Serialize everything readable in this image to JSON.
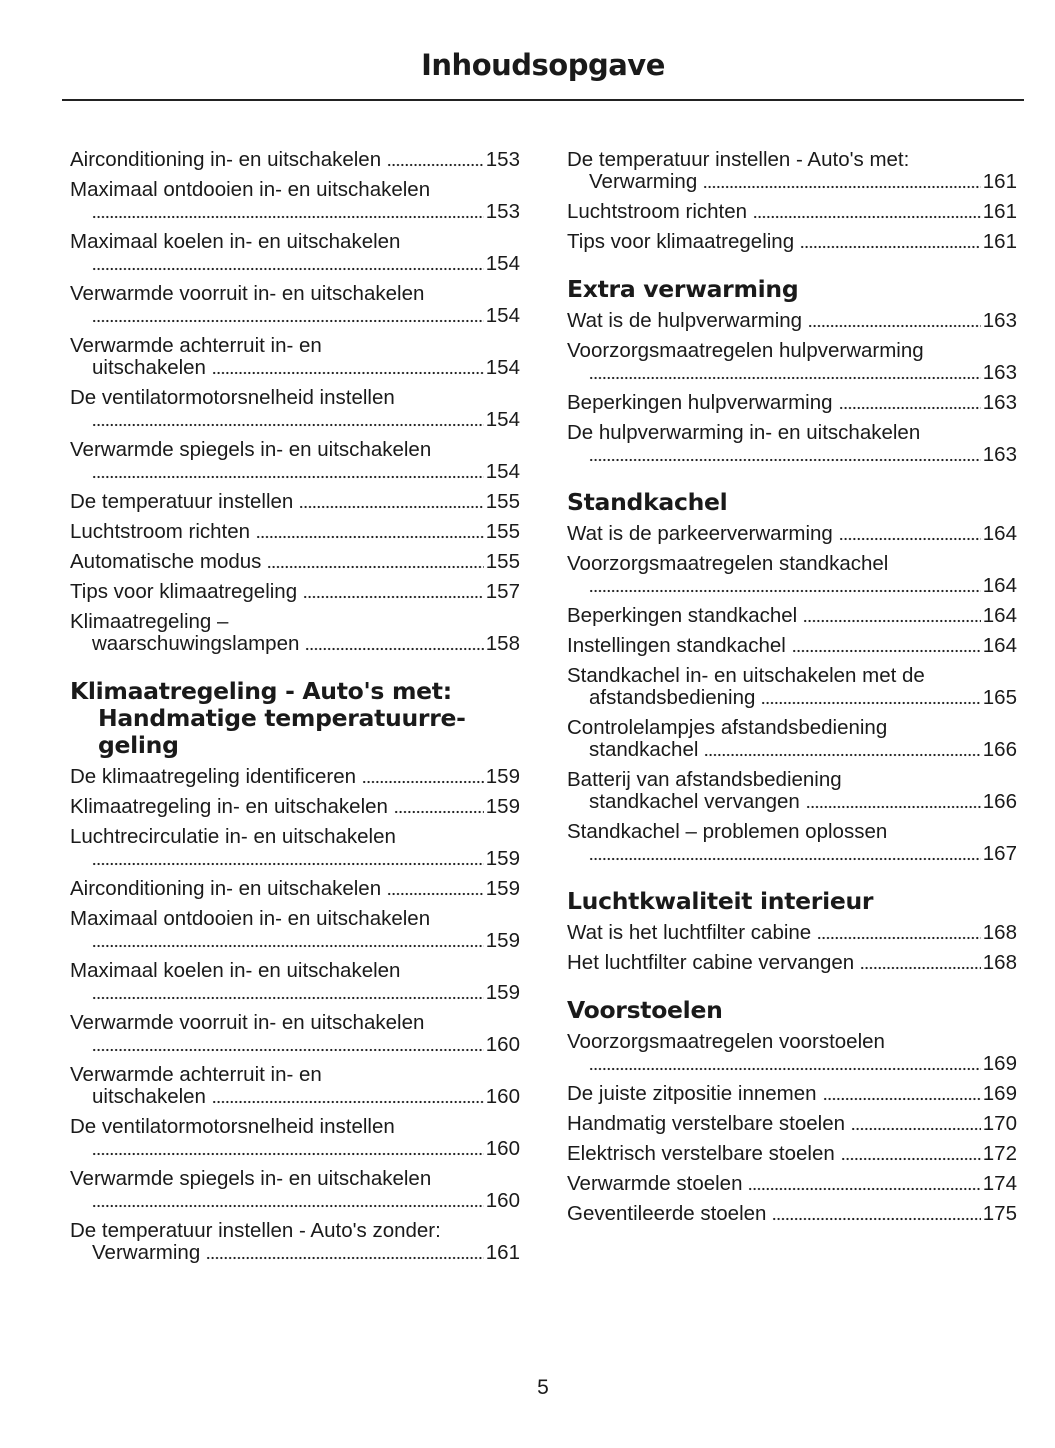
{
  "title": "Inhoudsopgave",
  "page_number": "5",
  "columns": [
    {
      "items": [
        {
          "type": "entry",
          "text": "Airconditioning in- en uitschakelen",
          "page": "153"
        },
        {
          "type": "entry",
          "text": "Maximaal ontdooien in- en uitschakelen",
          "cont": "",
          "page": "153"
        },
        {
          "type": "entry",
          "text": "Maximaal koelen in- en uitschakelen",
          "cont": "",
          "page": "154"
        },
        {
          "type": "entry",
          "text": "Verwarmde voorruit in- en uitschakelen",
          "cont": "",
          "page": "154"
        },
        {
          "type": "entry",
          "text": "Verwarmde achterruit in- en",
          "cont": "uitschakelen",
          "page": "154"
        },
        {
          "type": "entry",
          "text": "De ventilatormotorsnelheid instellen",
          "cont": "",
          "page": "154"
        },
        {
          "type": "entry",
          "text": "Verwarmde spiegels in- en uitschakelen",
          "cont": "",
          "page": "154"
        },
        {
          "type": "entry",
          "text": "De temperatuur instellen",
          "page": "155"
        },
        {
          "type": "entry",
          "text": "Luchtstroom richten",
          "page": "155"
        },
        {
          "type": "entry",
          "text": "Automatische modus",
          "page": "155"
        },
        {
          "type": "entry",
          "text": "Tips voor klimaatregeling",
          "page": "157"
        },
        {
          "type": "entry",
          "text": "Klimaatregeling –",
          "cont": "waarschuwingslampen",
          "page": "158"
        },
        {
          "type": "heading",
          "lines": [
            "Klimaatregeling - Auto's met:",
            "Handmatige temperatuurre-",
            "geling"
          ]
        },
        {
          "type": "entry",
          "text": "De klimaatregeling identificeren",
          "page": "159"
        },
        {
          "type": "entry",
          "text": "Klimaatregeling in- en uitschakelen",
          "page": "159"
        },
        {
          "type": "entry",
          "text": "Luchtrecirculatie in- en uitschakelen",
          "cont": "",
          "page": "159"
        },
        {
          "type": "entry",
          "text": "Airconditioning in- en uitschakelen",
          "page": "159"
        },
        {
          "type": "entry",
          "text": "Maximaal ontdooien in- en uitschakelen",
          "cont": "",
          "page": "159"
        },
        {
          "type": "entry",
          "text": "Maximaal koelen in- en uitschakelen",
          "cont": "",
          "page": "159"
        },
        {
          "type": "entry",
          "text": "Verwarmde voorruit in- en uitschakelen",
          "cont": "",
          "page": "160"
        },
        {
          "type": "entry",
          "text": "Verwarmde achterruit in- en",
          "cont": "uitschakelen",
          "page": "160"
        },
        {
          "type": "entry",
          "text": "De ventilatormotorsnelheid instellen",
          "cont": "",
          "page": "160"
        },
        {
          "type": "entry",
          "text": "Verwarmde spiegels in- en uitschakelen",
          "cont": "",
          "page": "160"
        },
        {
          "type": "entry",
          "text": "De temperatuur instellen - Auto's zonder:",
          "cont": "Verwarming",
          "page": "161"
        }
      ]
    },
    {
      "items": [
        {
          "type": "entry",
          "text": "De temperatuur instellen - Auto's met:",
          "cont": "Verwarming",
          "page": "161"
        },
        {
          "type": "entry",
          "text": "Luchtstroom richten",
          "page": "161"
        },
        {
          "type": "entry",
          "text": "Tips voor klimaatregeling",
          "page": "161"
        },
        {
          "type": "heading",
          "lines": [
            "Extra verwarming"
          ]
        },
        {
          "type": "entry",
          "text": "Wat is de hulpverwarming",
          "page": "163"
        },
        {
          "type": "entry",
          "text": "Voorzorgsmaatregelen hulpverwarming",
          "cont": "",
          "page": "163"
        },
        {
          "type": "entry",
          "text": "Beperkingen hulpverwarming",
          "page": "163"
        },
        {
          "type": "entry",
          "text": "De hulpverwarming in- en uitschakelen",
          "cont": "",
          "page": "163"
        },
        {
          "type": "heading",
          "lines": [
            "Standkachel"
          ]
        },
        {
          "type": "entry",
          "text": "Wat is de parkeerverwarming",
          "page": "164"
        },
        {
          "type": "entry",
          "text": "Voorzorgsmaatregelen standkachel",
          "cont": "",
          "page": "164"
        },
        {
          "type": "entry",
          "text": "Beperkingen standkachel",
          "page": "164"
        },
        {
          "type": "entry",
          "text": "Instellingen standkachel",
          "page": "164"
        },
        {
          "type": "entry",
          "text": "Standkachel in- en uitschakelen met de",
          "cont": "afstandsbediening",
          "page": "165"
        },
        {
          "type": "entry",
          "text": "Controlelampjes afstandsbediening",
          "cont": "standkachel",
          "page": "166"
        },
        {
          "type": "entry",
          "text": "Batterij van afstandsbediening",
          "cont": "standkachel vervangen",
          "page": "166"
        },
        {
          "type": "entry",
          "text": "Standkachel – problemen oplossen",
          "cont": "",
          "page": "167"
        },
        {
          "type": "heading",
          "lines": [
            "Luchtkwaliteit interieur"
          ]
        },
        {
          "type": "entry",
          "text": "Wat is het luchtfilter cabine",
          "page": "168"
        },
        {
          "type": "entry",
          "text": "Het luchtfilter cabine vervangen",
          "page": "168"
        },
        {
          "type": "heading",
          "lines": [
            "Voorstoelen"
          ]
        },
        {
          "type": "entry",
          "text": "Voorzorgsmaatregelen voorstoelen",
          "cont": "",
          "page": "169"
        },
        {
          "type": "entry",
          "text": "De juiste zitpositie innemen",
          "page": "169"
        },
        {
          "type": "entry",
          "text": "Handmatig verstelbare stoelen",
          "page": "170"
        },
        {
          "type": "entry",
          "text": "Elektrisch verstelbare stoelen",
          "page": "172"
        },
        {
          "type": "entry",
          "text": "Verwarmde stoelen",
          "page": "174"
        },
        {
          "type": "entry",
          "text": "Geventileerde stoelen",
          "page": "175"
        }
      ]
    }
  ]
}
